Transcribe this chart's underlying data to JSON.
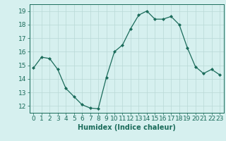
{
  "x": [
    0,
    1,
    2,
    3,
    4,
    5,
    6,
    7,
    8,
    9,
    10,
    11,
    12,
    13,
    14,
    15,
    16,
    17,
    18,
    19,
    20,
    21,
    22,
    23
  ],
  "y": [
    14.8,
    15.6,
    15.5,
    14.7,
    13.3,
    12.7,
    12.1,
    11.85,
    11.8,
    14.1,
    16.0,
    16.5,
    17.7,
    18.7,
    19.0,
    18.4,
    18.4,
    18.6,
    18.0,
    16.3,
    14.9,
    14.4,
    14.7,
    14.3
  ],
  "line_color": "#1a6b5a",
  "marker": "D",
  "marker_size": 2.0,
  "bg_color": "#d6f0ef",
  "grid_color": "#b8d8d6",
  "xlabel": "Humidex (Indice chaleur)",
  "xlabel_fontsize": 7,
  "tick_fontsize": 6.5,
  "ylim": [
    11.5,
    19.5
  ],
  "xlim": [
    -0.5,
    23.5
  ],
  "yticks": [
    12,
    13,
    14,
    15,
    16,
    17,
    18,
    19
  ],
  "xticks": [
    0,
    1,
    2,
    3,
    4,
    5,
    6,
    7,
    8,
    9,
    10,
    11,
    12,
    13,
    14,
    15,
    16,
    17,
    18,
    19,
    20,
    21,
    22,
    23
  ]
}
